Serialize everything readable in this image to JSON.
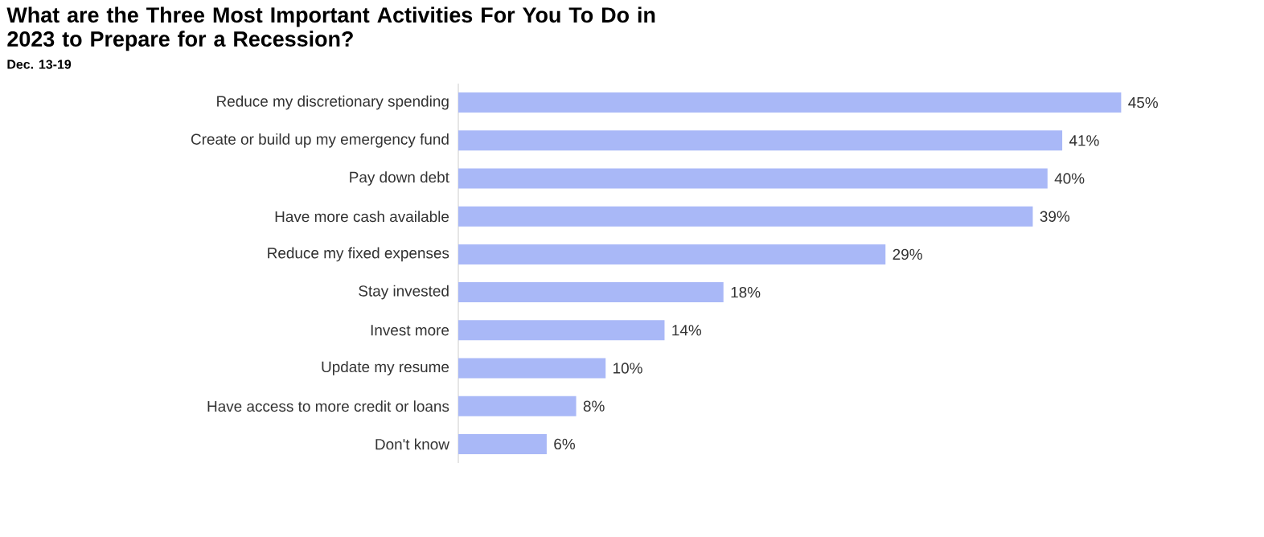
{
  "chart_data": {
    "type": "bar",
    "orientation": "horizontal",
    "title": "What are the Three Most Important Activities For You To Do in 2023 to Prepare for a Recession?",
    "subtitle": "Dec. 13-19",
    "categories": [
      "Reduce my discretionary spending",
      "Create or build up my emergency fund",
      "Pay down debt",
      "Have more cash available",
      "Reduce my fixed expenses",
      "Stay invested",
      "Invest more",
      "Update my resume",
      "Have access to more credit or loans",
      "Don't know"
    ],
    "values": [
      45,
      41,
      40,
      39,
      29,
      18,
      14,
      10,
      8,
      6
    ],
    "value_labels": [
      "45%",
      "41%",
      "40%",
      "39%",
      "29%",
      "18%",
      "14%",
      "10%",
      "8%",
      "6%"
    ],
    "color": "#a9b8f7"
  }
}
